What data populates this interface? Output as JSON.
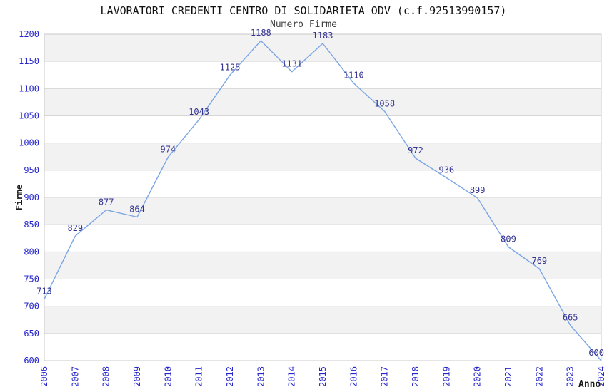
{
  "chart_data": {
    "type": "line",
    "title": "LAVORATORI CREDENTI CENTRO DI SOLIDARIETA ODV (c.f.92513990157)",
    "subtitle": "Numero Firme",
    "xlabel": "Anno",
    "ylabel": "Firme",
    "x": [
      "2006",
      "2007",
      "2008",
      "2009",
      "2010",
      "2011",
      "2012",
      "2013",
      "2014",
      "2015",
      "2016",
      "2017",
      "2018",
      "2019",
      "2020",
      "2021",
      "2022",
      "2023",
      "2024"
    ],
    "values": [
      713,
      829,
      877,
      864,
      974,
      1043,
      1125,
      1188,
      1131,
      1183,
      1110,
      1058,
      972,
      936,
      899,
      809,
      769,
      665,
      600
    ],
    "ylim": [
      600,
      1200
    ],
    "ytick_step": 50,
    "grid": true,
    "legend_position": "none",
    "colors": {
      "line": "#7aa5e5",
      "data_label": "#333391",
      "tick_label": "#2626cc",
      "band_gray": "#f2f2f2",
      "band_white": "#ffffff",
      "gridline": "#d6d6d6",
      "plot_border": "#c8c8c8",
      "title": "#111111",
      "subtitle": "#404040",
      "axis_title": "#1a1a1a"
    }
  }
}
